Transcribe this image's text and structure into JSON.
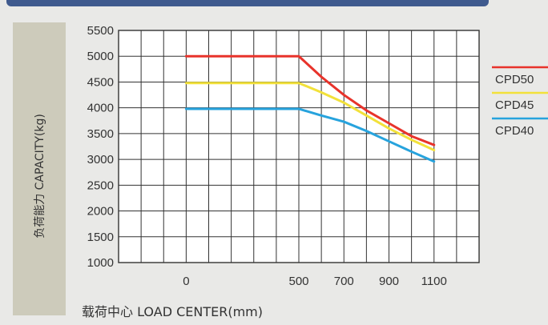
{
  "chart_data": {
    "type": "line",
    "title": "",
    "xlabel": "载荷中心 LOAD CENTER(mm)",
    "ylabel": "负荷能力 CAPACITY(kg)",
    "xlim": [
      -300,
      1300
    ],
    "ylim": [
      1000,
      5500
    ],
    "x_ticks": [
      0,
      500,
      700,
      900,
      1100
    ],
    "y_ticks": [
      1000,
      1500,
      2000,
      2500,
      3000,
      3500,
      4000,
      4500,
      5000,
      5500
    ],
    "grid": true,
    "legend_position": "right",
    "series": [
      {
        "name": "CPD50",
        "color": "#e8332b",
        "x": [
          0,
          500,
          600,
          700,
          800,
          900,
          1000,
          1100
        ],
        "y": [
          5000,
          5000,
          4600,
          4250,
          3950,
          3700,
          3450,
          3280
        ]
      },
      {
        "name": "CPD45",
        "color": "#f2e13a",
        "x": [
          0,
          500,
          600,
          700,
          800,
          900,
          1000,
          1100
        ],
        "y": [
          4480,
          4480,
          4300,
          4100,
          3850,
          3600,
          3380,
          3180
        ]
      },
      {
        "name": "CPD40",
        "color": "#27a3dd",
        "x": [
          0,
          500,
          600,
          700,
          800,
          900,
          1000,
          1100
        ],
        "y": [
          3980,
          3980,
          3850,
          3730,
          3550,
          3350,
          3150,
          2960
        ]
      }
    ]
  }
}
